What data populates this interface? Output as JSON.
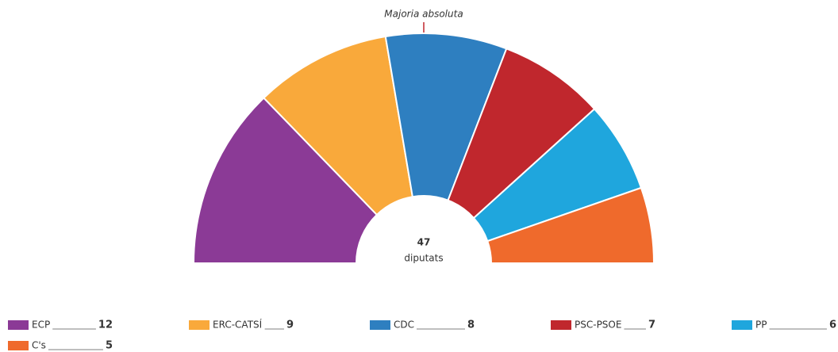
{
  "chart_data": {
    "type": "parliament",
    "annotation": "Majoria absoluta",
    "total": 47,
    "total_label": "diputats",
    "series": [
      {
        "name": "ECP",
        "color": "#8b3a96",
        "values": [
          12
        ]
      },
      {
        "name": "ERC-CATSÍ",
        "color": "#f9a93b",
        "values": [
          9
        ]
      },
      {
        "name": "CDC",
        "color": "#2e7fc0",
        "values": [
          8
        ]
      },
      {
        "name": "PSC-PSOE",
        "color": "#c0272d",
        "values": [
          7
        ]
      },
      {
        "name": "PP",
        "color": "#1fa6dd",
        "values": [
          6
        ]
      },
      {
        "name": "C's",
        "color": "#ef6a2c",
        "values": [
          5
        ]
      }
    ]
  }
}
